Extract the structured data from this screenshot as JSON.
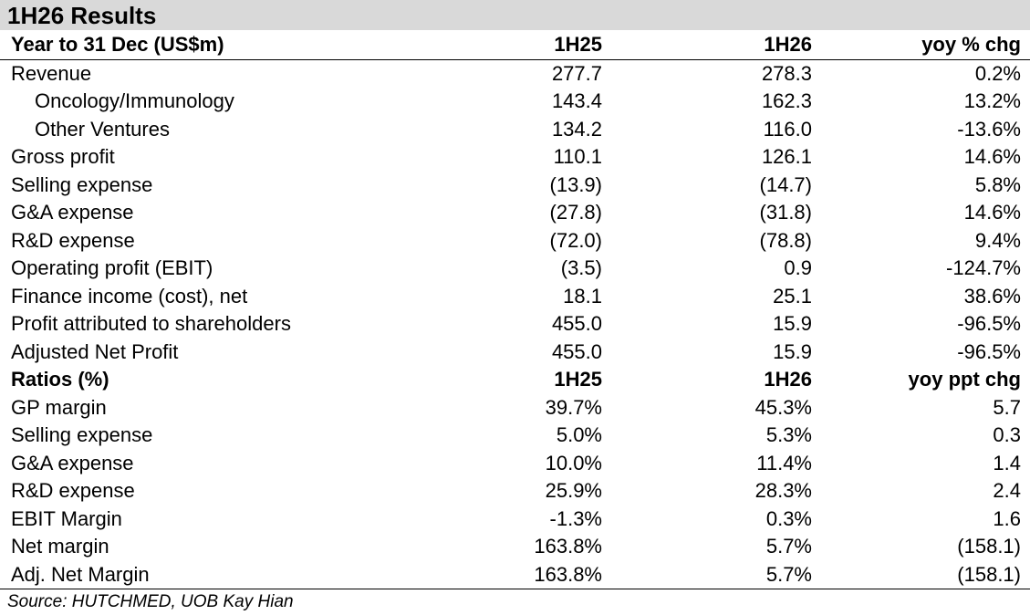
{
  "title": "1H26 Results",
  "header": {
    "label": "Year to 31 Dec (US$m)",
    "col1": "1H25",
    "col2": "1H26",
    "col3": "yoy % chg"
  },
  "rows": [
    {
      "label": "Revenue",
      "v1": "277.7",
      "v2": "278.3",
      "v3": "0.2%"
    },
    {
      "label": "Oncology/Immunology",
      "v1": "143.4",
      "v2": "162.3",
      "v3": "13.2%"
    },
    {
      "label": "Other Ventures",
      "v1": "134.2",
      "v2": "116.0",
      "v3": "-13.6%"
    },
    {
      "label": "Gross profit",
      "v1": "110.1",
      "v2": "126.1",
      "v3": "14.6%"
    },
    {
      "label": "Selling expense",
      "v1": "(13.9)",
      "v2": "(14.7)",
      "v3": "5.8%"
    },
    {
      "label": "G&A expense",
      "v1": "(27.8)",
      "v2": "(31.8)",
      "v3": "14.6%"
    },
    {
      "label": "R&D expense",
      "v1": "(72.0)",
      "v2": "(78.8)",
      "v3": "9.4%"
    },
    {
      "label": "Operating profit (EBIT)",
      "v1": "(3.5)",
      "v2": "0.9",
      "v3": "-124.7%"
    },
    {
      "label": "Finance income (cost), net",
      "v1": "18.1",
      "v2": "25.1",
      "v3": "38.6%"
    },
    {
      "label": "Profit attributed to shareholders",
      "v1": "455.0",
      "v2": "15.9",
      "v3": "-96.5%"
    },
    {
      "label": "Adjusted Net Profit",
      "v1": "455.0",
      "v2": "15.9",
      "v3": "-96.5%"
    }
  ],
  "ratios_header": {
    "label": "Ratios (%)",
    "col1": "1H25",
    "col2": "1H26",
    "col3": "yoy ppt chg"
  },
  "ratios": [
    {
      "label": "GP margin",
      "v1": "39.7%",
      "v2": "45.3%",
      "v3": "5.7"
    },
    {
      "label": "Selling expense",
      "v1": "5.0%",
      "v2": "5.3%",
      "v3": "0.3"
    },
    {
      "label": "G&A expense",
      "v1": "10.0%",
      "v2": "11.4%",
      "v3": "1.4"
    },
    {
      "label": "R&D expense",
      "v1": "25.9%",
      "v2": "28.3%",
      "v3": "2.4"
    },
    {
      "label": "EBIT Margin",
      "v1": "-1.3%",
      "v2": "0.3%",
      "v3": "1.6"
    },
    {
      "label": "Net margin",
      "v1": "163.8%",
      "v2": "5.7%",
      "v3": "(158.1)"
    },
    {
      "label": "Adj. Net Margin",
      "v1": "163.8%",
      "v2": "5.7%",
      "v3": "(158.1)"
    }
  ],
  "source": "Source: HUTCHMED, UOB Kay Hian"
}
